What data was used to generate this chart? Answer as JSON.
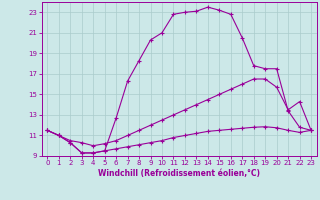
{
  "xlabel": "Windchill (Refroidissement éolien,°C)",
  "bg_color": "#cce8e8",
  "line_color": "#990099",
  "grid_color": "#aacccc",
  "xlim": [
    -0.5,
    23.5
  ],
  "ylim": [
    9,
    24
  ],
  "yticks": [
    9,
    11,
    13,
    15,
    17,
    19,
    21,
    23
  ],
  "xticks": [
    0,
    1,
    2,
    3,
    4,
    5,
    6,
    7,
    8,
    9,
    10,
    11,
    12,
    13,
    14,
    15,
    16,
    17,
    18,
    19,
    20,
    21,
    22,
    23
  ],
  "curve1_x": [
    0,
    1,
    2,
    3,
    4,
    5,
    6,
    7,
    8,
    9,
    10,
    11,
    12,
    13,
    14,
    15,
    16,
    17,
    18,
    19,
    20,
    21,
    22,
    23
  ],
  "curve1_y": [
    11.5,
    11.0,
    10.3,
    9.3,
    9.3,
    9.5,
    12.7,
    16.3,
    18.3,
    20.3,
    21.0,
    22.8,
    23.0,
    23.1,
    23.5,
    23.2,
    22.8,
    20.5,
    17.8,
    17.5,
    17.5,
    13.4,
    11.8,
    11.5
  ],
  "curve2_x": [
    0,
    1,
    2,
    3,
    4,
    5,
    6,
    7,
    8,
    9,
    10,
    11,
    12,
    13,
    14,
    15,
    16,
    17,
    18,
    19,
    20,
    21,
    22,
    23
  ],
  "curve2_y": [
    11.5,
    11.0,
    10.5,
    10.3,
    10.0,
    10.2,
    10.5,
    11.0,
    11.5,
    12.0,
    12.5,
    13.0,
    13.5,
    14.0,
    14.5,
    15.0,
    15.5,
    16.0,
    16.5,
    16.5,
    15.7,
    13.5,
    14.3,
    11.5
  ],
  "curve3_x": [
    0,
    1,
    2,
    3,
    4,
    5,
    6,
    7,
    8,
    9,
    10,
    11,
    12,
    13,
    14,
    15,
    16,
    17,
    18,
    19,
    20,
    21,
    22,
    23
  ],
  "curve3_y": [
    11.5,
    11.0,
    10.3,
    9.3,
    9.3,
    9.5,
    9.7,
    9.9,
    10.1,
    10.3,
    10.5,
    10.8,
    11.0,
    11.2,
    11.4,
    11.5,
    11.6,
    11.7,
    11.8,
    11.85,
    11.75,
    11.5,
    11.3,
    11.5
  ]
}
